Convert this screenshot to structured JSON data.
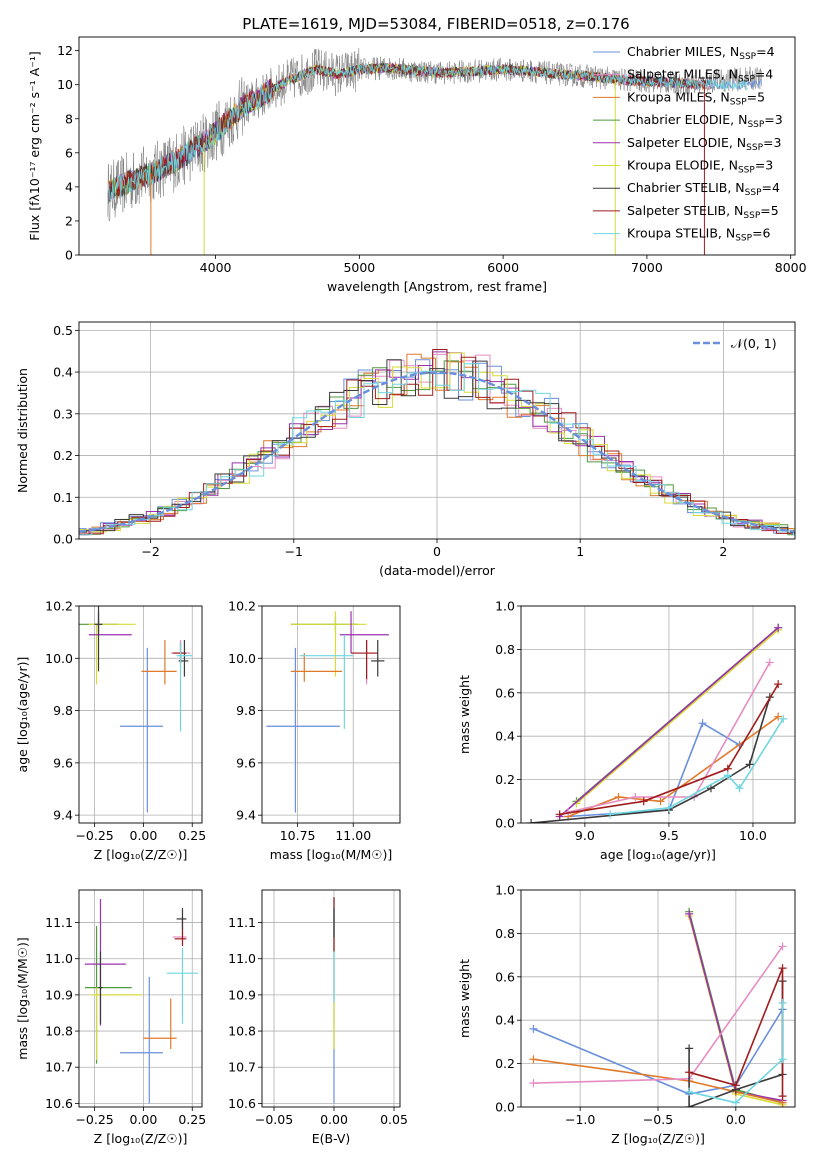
{
  "figure": {
    "title": "PLATE=1619, MJD=53084, FIBERID=0518, z=0.176"
  },
  "colors": {
    "Chabrier MILES": "#6a8fdc",
    "Salpeter MILES": "#e07a2a",
    "Kroupa MILES": "#e07a2a",
    "Chabrier ELODIE": "#4f9a3d",
    "Salpeter ELODIE": "#9b30b0",
    "Kroupa ELODIE": "#d8dc38",
    "Chabrier STELIB": "#3a3a3a",
    "Salpeter STELIB": "#a01c1c",
    "Kroupa STELIB": "#6fd6e0",
    "pink": "#e68cc2",
    "data": "#7a7a7a",
    "normal": "#6a8fdc"
  },
  "chart_data": [
    {
      "id": "spectrum",
      "type": "line",
      "title": "PLATE=1619, MJD=53084, FIBERID=0518, z=0.176",
      "xlabel": "wavelength [Angstrom, rest frame]",
      "ylabel": "Flux [fλ10⁻¹⁷ erg cm⁻² s⁻¹ A⁻¹]",
      "xlim": [
        3050,
        8030
      ],
      "ylim": [
        0,
        12.8
      ],
      "xticks": [
        4000,
        5000,
        6000,
        7000,
        8000
      ],
      "yticks": [
        0,
        2,
        4,
        6,
        8,
        10,
        12
      ],
      "grid": false,
      "legend_position": "top-right",
      "continuum": {
        "x": [
          3250,
          3400,
          3550,
          3700,
          3850,
          3950,
          4050,
          4200,
          4300,
          4400,
          4550,
          4700,
          4850,
          5000,
          5200,
          5400,
          5600,
          5800,
          6000,
          6200,
          6400,
          6600,
          6800,
          7000,
          7200,
          7400
        ],
        "y": [
          3.7,
          4.3,
          4.8,
          5.4,
          6.2,
          6.8,
          7.6,
          8.8,
          9.2,
          9.8,
          10.4,
          10.9,
          10.6,
          10.9,
          11.0,
          10.8,
          10.7,
          10.8,
          10.9,
          10.8,
          10.6,
          10.5,
          10.3,
          10.2,
          10.1,
          10.0
        ]
      },
      "legend": [
        {
          "label": "Chabrier MILES, N",
          "sub": "SSP",
          "tail": "=4",
          "color": "#6a8fdc"
        },
        {
          "label": "Salpeter MILES, N",
          "sub": "SSP",
          "tail": "=4",
          "color": "#e68cc2"
        },
        {
          "label": "Kroupa MILES, N",
          "sub": "SSP",
          "tail": "=5",
          "color": "#e07a2a"
        },
        {
          "label": "Chabrier ELODIE, N",
          "sub": "SSP",
          "tail": "=3",
          "color": "#4f9a3d"
        },
        {
          "label": "Salpeter ELODIE, N",
          "sub": "SSP",
          "tail": "=3",
          "color": "#9b30b0"
        },
        {
          "label": "Kroupa ELODIE, N",
          "sub": "SSP",
          "tail": "=3",
          "color": "#d8dc38"
        },
        {
          "label": "Chabrier STELIB, N",
          "sub": "SSP",
          "tail": "=4",
          "color": "#3a3a3a"
        },
        {
          "label": "Salpeter STELIB, N",
          "sub": "SSP",
          "tail": "=5",
          "color": "#a01c1c"
        },
        {
          "label": "Kroupa STELIB, N",
          "sub": "SSP",
          "tail": "=6",
          "color": "#6fd6e0"
        }
      ]
    },
    {
      "id": "residuals",
      "type": "bar",
      "xlabel": "(data-model)/error",
      "ylabel": "Normed distribution",
      "xlim": [
        -2.5,
        2.5
      ],
      "ylim": [
        0,
        0.52
      ],
      "xticks": [
        -2,
        -1,
        0,
        1,
        2
      ],
      "yticks": [
        0.0,
        0.1,
        0.2,
        0.3,
        0.4,
        0.5
      ],
      "grid": true,
      "legend_position": "top-right",
      "legend": [
        {
          "label": "𝒩(0, 1)",
          "color": "#6a8fdc"
        }
      ],
      "bin_width": 0.1,
      "series_colors": [
        "#6a8fdc",
        "#e68cc2",
        "#e07a2a",
        "#4f9a3d",
        "#9b30b0",
        "#d8dc38",
        "#3a3a3a",
        "#a01c1c",
        "#6fd6e0"
      ]
    },
    {
      "id": "age-vs-Z",
      "type": "scatter",
      "xlabel": "Z [log₁₀(Z/Z☉)]",
      "ylabel": "age  [log₁₀(age/yr)]",
      "xlim": [
        -0.33,
        0.3
      ],
      "ylim": [
        9.37,
        10.2
      ],
      "xticks": [
        -0.25,
        0.0,
        0.25
      ],
      "xticklabels": [
        "−0.25",
        "0.00",
        "0.25"
      ],
      "yticks": [
        9.4,
        9.6,
        9.8,
        10.0,
        10.2
      ],
      "grid": true,
      "points": [
        {
          "x": -0.23,
          "y": 10.13,
          "xerr": [
            0.1,
            0.1
          ],
          "yerr": [
            0.03,
            0.03
          ],
          "color": "#4f9a3d"
        },
        {
          "x": -0.24,
          "y": 10.13,
          "xerr": [
            0.04,
            0.2
          ],
          "yerr": [
            0.23,
            0.0
          ],
          "color": "#d8dc38"
        },
        {
          "x": -0.23,
          "y": 10.09,
          "xerr": [
            0.05,
            0.17
          ],
          "yerr": [
            0.0,
            0.09
          ],
          "color": "#9b30b0"
        },
        {
          "x": -0.23,
          "y": 10.13,
          "xerr": [
            0.02,
            0.02
          ],
          "yerr": [
            0.18,
            0.07
          ],
          "color": "#3a3a3a"
        },
        {
          "x": 0.02,
          "y": 9.74,
          "xerr": [
            0.14,
            0.08
          ],
          "yerr": [
            0.33,
            0.3
          ],
          "color": "#6a8fdc"
        },
        {
          "x": 0.11,
          "y": 9.95,
          "xerr": [
            0.12,
            0.06
          ],
          "yerr": [
            0.05,
            0.12
          ],
          "color": "#e07a2a"
        },
        {
          "x": 0.19,
          "y": 10.02,
          "xerr": [
            0.05,
            0.05
          ],
          "yerr": [
            0.05,
            0.05
          ],
          "color": "#e68cc2"
        },
        {
          "x": 0.19,
          "y": 10.02,
          "xerr": [
            0.04,
            0.03
          ],
          "yerr": [
            0.04,
            0.04
          ],
          "color": "#a01c1c"
        },
        {
          "x": 0.21,
          "y": 9.99,
          "xerr": [
            0.03,
            0.02
          ],
          "yerr": [
            0.06,
            0.08
          ],
          "color": "#3a3a3a"
        },
        {
          "x": 0.19,
          "y": 10.01,
          "xerr": [
            0.02,
            0.06
          ],
          "yerr": [
            0.29,
            0.05
          ],
          "color": "#6fd6e0"
        }
      ]
    },
    {
      "id": "age-vs-mass",
      "type": "scatter",
      "xlabel": "mass [log₁₀(M/M☉)]",
      "ylabel": "",
      "xlim": [
        10.59,
        11.21
      ],
      "ylim": [
        9.37,
        10.2
      ],
      "xticks": [
        10.75,
        11.0
      ],
      "xticklabels": [
        "10.75",
        "11.00"
      ],
      "yticks": [
        9.4,
        9.6,
        9.8,
        10.0,
        10.2
      ],
      "grid": true,
      "points": [
        {
          "x": 10.92,
          "y": 10.13,
          "xerr": [
            0.2,
            0.1
          ],
          "yerr": [
            0.03,
            0.03
          ],
          "color": "#4f9a3d"
        },
        {
          "x": 10.92,
          "y": 10.13,
          "xerr": [
            0.2,
            0.14
          ],
          "yerr": [
            0.2,
            0.05
          ],
          "color": "#d8dc38"
        },
        {
          "x": 10.99,
          "y": 10.09,
          "xerr": [
            0.05,
            0.17
          ],
          "yerr": [
            0.07,
            0.09
          ],
          "color": "#9b30b0"
        },
        {
          "x": 10.74,
          "y": 9.74,
          "xerr": [
            0.13,
            0.2
          ],
          "yerr": [
            0.33,
            0.3
          ],
          "color": "#6a8fdc"
        },
        {
          "x": 10.78,
          "y": 9.95,
          "xerr": [
            0.06,
            0.17
          ],
          "yerr": [
            0.04,
            0.07
          ],
          "color": "#e07a2a"
        },
        {
          "x": 11.06,
          "y": 10.02,
          "xerr": [
            0.07,
            0.05
          ],
          "yerr": [
            0.12,
            0.05
          ],
          "color": "#e68cc2"
        },
        {
          "x": 11.06,
          "y": 10.02,
          "xerr": [
            0.07,
            0.05
          ],
          "yerr": [
            0.1,
            0.05
          ],
          "color": "#a01c1c"
        },
        {
          "x": 11.11,
          "y": 9.99,
          "xerr": [
            0.03,
            0.03
          ],
          "yerr": [
            0.06,
            0.08
          ],
          "color": "#3a3a3a"
        },
        {
          "x": 10.96,
          "y": 10.01,
          "xerr": [
            0.2,
            0.04
          ],
          "yerr": [
            0.28,
            0.08
          ],
          "color": "#6fd6e0"
        }
      ]
    },
    {
      "id": "massweight-vs-age",
      "type": "line",
      "xlabel": "age  [log₁₀(age/yr)]",
      "ylabel": "mass weight",
      "xlim": [
        8.62,
        10.25
      ],
      "ylim": [
        0,
        1.0
      ],
      "xticks": [
        9.0,
        9.5,
        10.0
      ],
      "yticks": [
        0.0,
        0.2,
        0.4,
        0.6,
        0.8,
        1.0
      ],
      "grid": true,
      "series": [
        {
          "color": "#4f9a3d",
          "x": [
            8.95,
            10.15
          ],
          "y": [
            0.1,
            0.9
          ]
        },
        {
          "color": "#d8dc38",
          "x": [
            8.95,
            10.15
          ],
          "y": [
            0.09,
            0.89
          ]
        },
        {
          "color": "#9b30b0",
          "x": [
            8.85,
            10.15
          ],
          "y": [
            0.03,
            0.9
          ]
        },
        {
          "color": "#6a8fdc",
          "x": [
            8.9,
            9.5,
            9.7,
            9.92
          ],
          "y": [
            0.03,
            0.06,
            0.46,
            0.36
          ]
        },
        {
          "color": "#e07a2a",
          "x": [
            8.9,
            9.2,
            9.45,
            10.15
          ],
          "y": [
            0.03,
            0.12,
            0.1,
            0.49
          ]
        },
        {
          "color": "#e68cc2",
          "x": [
            8.9,
            9.3,
            9.65,
            10.1
          ],
          "y": [
            0.05,
            0.12,
            0.12,
            0.74
          ]
        },
        {
          "color": "#3a3a3a",
          "x": [
            8.68,
            9.5,
            9.75,
            9.98,
            10.1
          ],
          "y": [
            0.0,
            0.06,
            0.16,
            0.27,
            0.58
          ]
        },
        {
          "color": "#a01c1c",
          "x": [
            8.85,
            9.35,
            9.85,
            10.15
          ],
          "y": [
            0.04,
            0.1,
            0.25,
            0.64
          ]
        },
        {
          "color": "#6fd6e0",
          "x": [
            9.15,
            9.5,
            9.85,
            9.92,
            10.18
          ],
          "y": [
            0.04,
            0.07,
            0.22,
            0.16,
            0.48
          ]
        }
      ]
    },
    {
      "id": "mass-vs-Z",
      "type": "scatter",
      "xlabel": "Z [log₁₀(Z/Z☉)]",
      "ylabel": "mass [log₁₀(M/M☉)]",
      "xlim": [
        -0.33,
        0.3
      ],
      "ylim": [
        10.59,
        11.19
      ],
      "xticks": [
        -0.25,
        0.0,
        0.25
      ],
      "xticklabels": [
        "−0.25",
        "0.00",
        "0.25"
      ],
      "yticks": [
        10.6,
        10.7,
        10.8,
        10.9,
        11.0,
        11.1
      ],
      "grid": true,
      "points": [
        {
          "x": -0.24,
          "y": 10.92,
          "xerr": [
            0.06,
            0.18
          ],
          "yerr": [
            0.21,
            0.17
          ],
          "color": "#4f9a3d"
        },
        {
          "x": -0.24,
          "y": 10.9,
          "xerr": [
            0.03,
            0.23
          ],
          "yerr": [
            0.18,
            0.02
          ],
          "color": "#d8dc38"
        },
        {
          "x": -0.22,
          "y": 10.985,
          "xerr": [
            0.08,
            0.13
          ],
          "yerr": [
            0.17,
            0.18
          ],
          "color": "#9b30b0"
        },
        {
          "x": -0.22,
          "y": 10.92,
          "xerr": [
            0.01,
            0.01
          ],
          "yerr": [
            0.1,
            0.1
          ],
          "color": "#3a3a3a"
        },
        {
          "x": 0.03,
          "y": 10.74,
          "xerr": [
            0.15,
            0.07
          ],
          "yerr": [
            0.14,
            0.21
          ],
          "color": "#6a8fdc"
        },
        {
          "x": 0.14,
          "y": 10.78,
          "xerr": [
            0.14,
            0.03
          ],
          "yerr": [
            0.03,
            0.11
          ],
          "color": "#e07a2a"
        },
        {
          "x": 0.2,
          "y": 11.06,
          "xerr": [
            0.05,
            0.02
          ],
          "yerr": [
            0.02,
            0.02
          ],
          "color": "#e68cc2"
        },
        {
          "x": 0.2,
          "y": 11.055,
          "xerr": [
            0.04,
            0.02
          ],
          "yerr": [
            0.02,
            0.06
          ],
          "color": "#a01c1c"
        },
        {
          "x": 0.2,
          "y": 11.11,
          "xerr": [
            0.03,
            0.02
          ],
          "yerr": [
            0.03,
            0.03
          ],
          "color": "#3a3a3a"
        },
        {
          "x": 0.17,
          "y": 10.96,
          "xerr": [
            0.05,
            0.11
          ],
          "yerr": [
            0.0,
            0.0
          ],
          "color": "#6fd6e0"
        },
        {
          "x": 0.2,
          "y": 10.96,
          "xerr": [
            0.0,
            0.0
          ],
          "yerr": [
            0.14,
            0.07
          ],
          "color": "#6fd6e0"
        }
      ]
    },
    {
      "id": "mass-vs-EBV",
      "type": "scatter",
      "xlabel": "E(B-V)",
      "ylabel": "",
      "xlim": [
        -0.06,
        0.055
      ],
      "ylim": [
        10.59,
        11.19
      ],
      "xticks": [
        -0.05,
        0.0,
        0.05
      ],
      "xticklabels": [
        "−0.05",
        "0.00",
        "0.05"
      ],
      "yticks": [
        10.6,
        10.7,
        10.8,
        10.9,
        11.0,
        11.1
      ],
      "grid": true,
      "points": [
        {
          "x": 0.0,
          "y": 10.9,
          "xerr": [
            0,
            0
          ],
          "yerr": [
            0.3,
            0.27
          ],
          "color": "#6a8fdc"
        },
        {
          "x": 0.0,
          "y": 10.92,
          "xerr": [
            0,
            0
          ],
          "yerr": [
            0.17,
            0.2
          ],
          "color": "#d8dc38"
        },
        {
          "x": 0.0,
          "y": 11.0,
          "xerr": [
            0,
            0
          ],
          "yerr": [
            0.12,
            0.17
          ],
          "color": "#6fd6e0"
        },
        {
          "x": 0.0,
          "y": 11.1,
          "xerr": [
            0,
            0
          ],
          "yerr": [
            0.08,
            0.07
          ],
          "color": "#a01c1c"
        },
        {
          "x": 0.0,
          "y": 11.1,
          "xerr": [
            0,
            0
          ],
          "yerr": [
            0.04,
            0.04
          ],
          "color": "#3a3a3a"
        }
      ]
    },
    {
      "id": "massweight-vs-Z",
      "type": "line",
      "xlabel": "Z [log₁₀(Z/Z☉)]",
      "ylabel": "mass weight",
      "xlim": [
        -1.38,
        0.38
      ],
      "ylim": [
        0,
        1.0
      ],
      "xticks": [
        -1.0,
        -0.5,
        0.0
      ],
      "xticklabels": [
        "−1.0",
        "−0.5",
        "0.0"
      ],
      "yticks": [
        0.0,
        0.2,
        0.4,
        0.6,
        0.8,
        1.0
      ],
      "grid": true,
      "series": [
        {
          "color": "#4f9a3d",
          "x": [
            -0.3,
            0.0,
            0.3
          ],
          "y": [
            0.9,
            0.08,
            0.02
          ]
        },
        {
          "color": "#d8dc38",
          "x": [
            -0.3,
            0.0,
            0.3
          ],
          "y": [
            0.88,
            0.06,
            0.01
          ]
        },
        {
          "color": "#9b30b0",
          "x": [
            -0.3,
            0.0,
            0.3
          ],
          "y": [
            0.89,
            0.07,
            0.03
          ]
        },
        {
          "color": "#6a8fdc",
          "x": [
            -1.3,
            -0.3,
            0.0,
            0.3
          ],
          "y": [
            0.36,
            0.06,
            0.1,
            0.45
          ]
        },
        {
          "color": "#e07a2a",
          "x": [
            -1.3,
            -0.3,
            0.0,
            0.3
          ],
          "y": [
            0.22,
            0.12,
            0.07,
            0.02
          ]
        },
        {
          "color": "#e68cc2",
          "x": [
            -1.3,
            -0.3,
            0.3
          ],
          "y": [
            0.11,
            0.13,
            0.74
          ]
        },
        {
          "color": "#3a3a3a",
          "x": [
            -0.3,
            -0.3,
            0.0,
            0.3,
            0.3
          ],
          "y": [
            0.27,
            0.0,
            0.08,
            0.15,
            0.58
          ]
        },
        {
          "color": "#a01c1c",
          "x": [
            -0.3,
            0.0,
            0.3,
            0.3
          ],
          "y": [
            0.16,
            0.1,
            0.64,
            0.05
          ]
        },
        {
          "color": "#6fd6e0",
          "x": [
            -0.3,
            0.0,
            0.3,
            0.3
          ],
          "y": [
            0.07,
            0.02,
            0.22,
            0.48
          ]
        }
      ]
    }
  ]
}
